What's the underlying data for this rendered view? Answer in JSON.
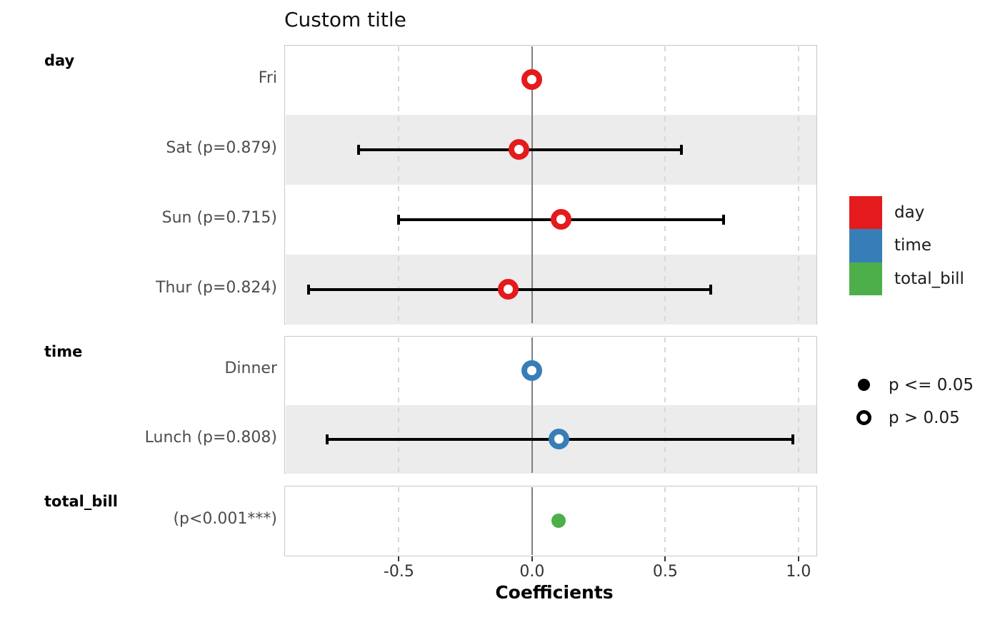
{
  "title": "Custom title",
  "xlabel": "Coefficients",
  "colors": {
    "day": "#e41a1c",
    "time": "#377eb8",
    "total_bill": "#4daf4a",
    "stripe": "#ececec",
    "zero_line": "#7f7f7f",
    "gridline": "#d8d8d8",
    "panel_border": "#c8c8c8",
    "error_bar": "#000000",
    "row_label_text": "#4d4d4d",
    "tick_text": "#333333"
  },
  "axis": {
    "ticks": [
      -0.5,
      0.0,
      0.5,
      1.0
    ],
    "tick_labels": [
      "-0.5",
      "0.0",
      "0.5",
      "1.0"
    ],
    "xlim": [
      -0.93,
      1.07
    ],
    "zero_line": 0.0,
    "grid_dashed_at": [
      -0.5,
      0.5,
      1.0
    ]
  },
  "legend": {
    "groups": [
      {
        "label": "day",
        "color": "#e41a1c"
      },
      {
        "label": "time",
        "color": "#377eb8"
      },
      {
        "label": "total_bill",
        "color": "#4daf4a"
      }
    ],
    "significance": [
      {
        "label": "p <= 0.05",
        "style": "filled"
      },
      {
        "label": "p > 0.05",
        "style": "open"
      }
    ]
  },
  "chart_data": {
    "type": "scatter",
    "subtype": "forest-coefficient-plot",
    "title": "Custom title",
    "xlabel": "Coefficients",
    "xlim": [
      -0.93,
      1.07
    ],
    "grid": "dashed vertical at -0.5, 0.5, 1.0; solid gray at 0.0",
    "legend_position": "right",
    "groups": [
      {
        "name": "day",
        "color": "#e41a1c",
        "rows": [
          {
            "label": "Fri",
            "value": 0.0,
            "ci_low": 0.0,
            "ci_high": 0.0,
            "marker": "open",
            "p": null
          },
          {
            "label": "Sat (p=0.879)",
            "value": -0.05,
            "ci_low": -0.65,
            "ci_high": 0.56,
            "marker": "open",
            "p": 0.879
          },
          {
            "label": "Sun (p=0.715)",
            "value": 0.11,
            "ci_low": -0.5,
            "ci_high": 0.72,
            "marker": "open",
            "p": 0.715
          },
          {
            "label": "Thur (p=0.824)",
            "value": -0.09,
            "ci_low": -0.84,
            "ci_high": 0.67,
            "marker": "open",
            "p": 0.824
          }
        ]
      },
      {
        "name": "time",
        "color": "#377eb8",
        "rows": [
          {
            "label": "Dinner",
            "value": 0.0,
            "ci_low": 0.0,
            "ci_high": 0.0,
            "marker": "open",
            "p": null
          },
          {
            "label": "Lunch (p=0.808)",
            "value": 0.1,
            "ci_low": -0.77,
            "ci_high": 0.98,
            "marker": "open",
            "p": 0.808
          }
        ]
      },
      {
        "name": "total_bill",
        "color": "#4daf4a",
        "rows": [
          {
            "label": "(p<0.001***)",
            "value": 0.1,
            "ci_low": 0.1,
            "ci_high": 0.1,
            "marker": "filled",
            "p": "<0.001"
          }
        ]
      }
    ]
  }
}
